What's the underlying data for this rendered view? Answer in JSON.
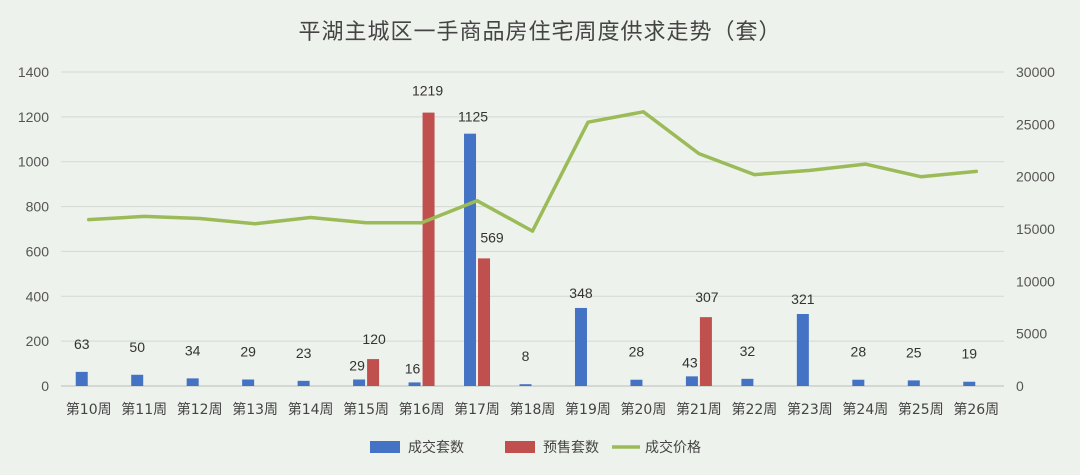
{
  "chart_data": {
    "type": "bar",
    "title": "平湖主城区一手商品房住宅周度供求走势（套）",
    "categories": [
      "第10周",
      "第11周",
      "第12周",
      "第13周",
      "第14周",
      "第15周",
      "第16周",
      "第17周",
      "第18周",
      "第19周",
      "第20周",
      "第21周",
      "第22周",
      "第23周",
      "第24周",
      "第25周",
      "第26周"
    ],
    "series": [
      {
        "name": "成交套数",
        "type": "bar",
        "axis": "left",
        "color": "#4472c4",
        "values": [
          63,
          50,
          34,
          29,
          23,
          29,
          16,
          1125,
          8,
          348,
          28,
          43,
          32,
          321,
          28,
          25,
          19
        ]
      },
      {
        "name": "预售套数",
        "type": "bar",
        "axis": "left",
        "color": "#c0504d",
        "values": [
          null,
          null,
          null,
          null,
          null,
          120,
          1219,
          569,
          null,
          null,
          null,
          307,
          null,
          null,
          null,
          null,
          null
        ]
      },
      {
        "name": "成交价格",
        "type": "line",
        "axis": "right",
        "color": "#9bbb59",
        "values": [
          15900,
          16200,
          16000,
          15500,
          16100,
          15600,
          15600,
          17700,
          14800,
          25200,
          26200,
          22200,
          20200,
          20600,
          21200,
          20000,
          20500
        ]
      }
    ],
    "y_left": {
      "min": 0,
      "max": 1400,
      "ticks": [
        0,
        200,
        400,
        600,
        800,
        1000,
        1200,
        1400
      ]
    },
    "y_right": {
      "min": 0,
      "max": 30000,
      "ticks": [
        0,
        5000,
        10000,
        15000,
        20000,
        25000,
        30000
      ]
    },
    "grid": true,
    "legend": "bottom"
  }
}
